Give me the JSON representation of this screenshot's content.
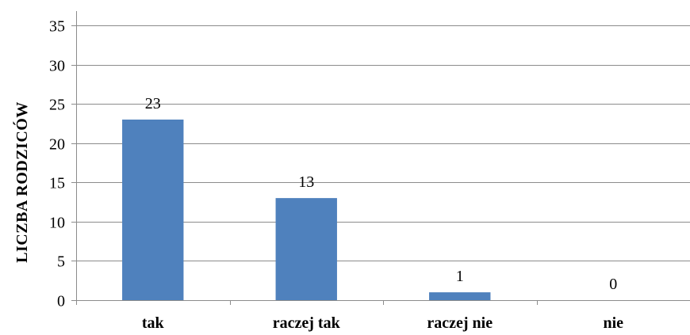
{
  "chart_data": {
    "type": "bar",
    "categories": [
      "tak",
      "raczej tak",
      "raczej nie",
      "nie"
    ],
    "values": [
      23,
      13,
      1,
      0
    ],
    "data_labels": [
      "23",
      "13",
      "1",
      "0"
    ],
    "title": "",
    "xlabel": "",
    "ylabel": "LICZBA  RODZICÓW",
    "ylim": [
      0,
      35
    ],
    "yticks": [
      0,
      5,
      10,
      15,
      20,
      25,
      30,
      35
    ],
    "ytick_labels": [
      "0",
      "5",
      "10",
      "15",
      "20",
      "25",
      "30",
      "35"
    ],
    "grid": "horizontal",
    "legend": "none",
    "colors": {
      "bar": "#4f81bd",
      "grid": "#8c8c8c",
      "text": "#000000"
    }
  }
}
